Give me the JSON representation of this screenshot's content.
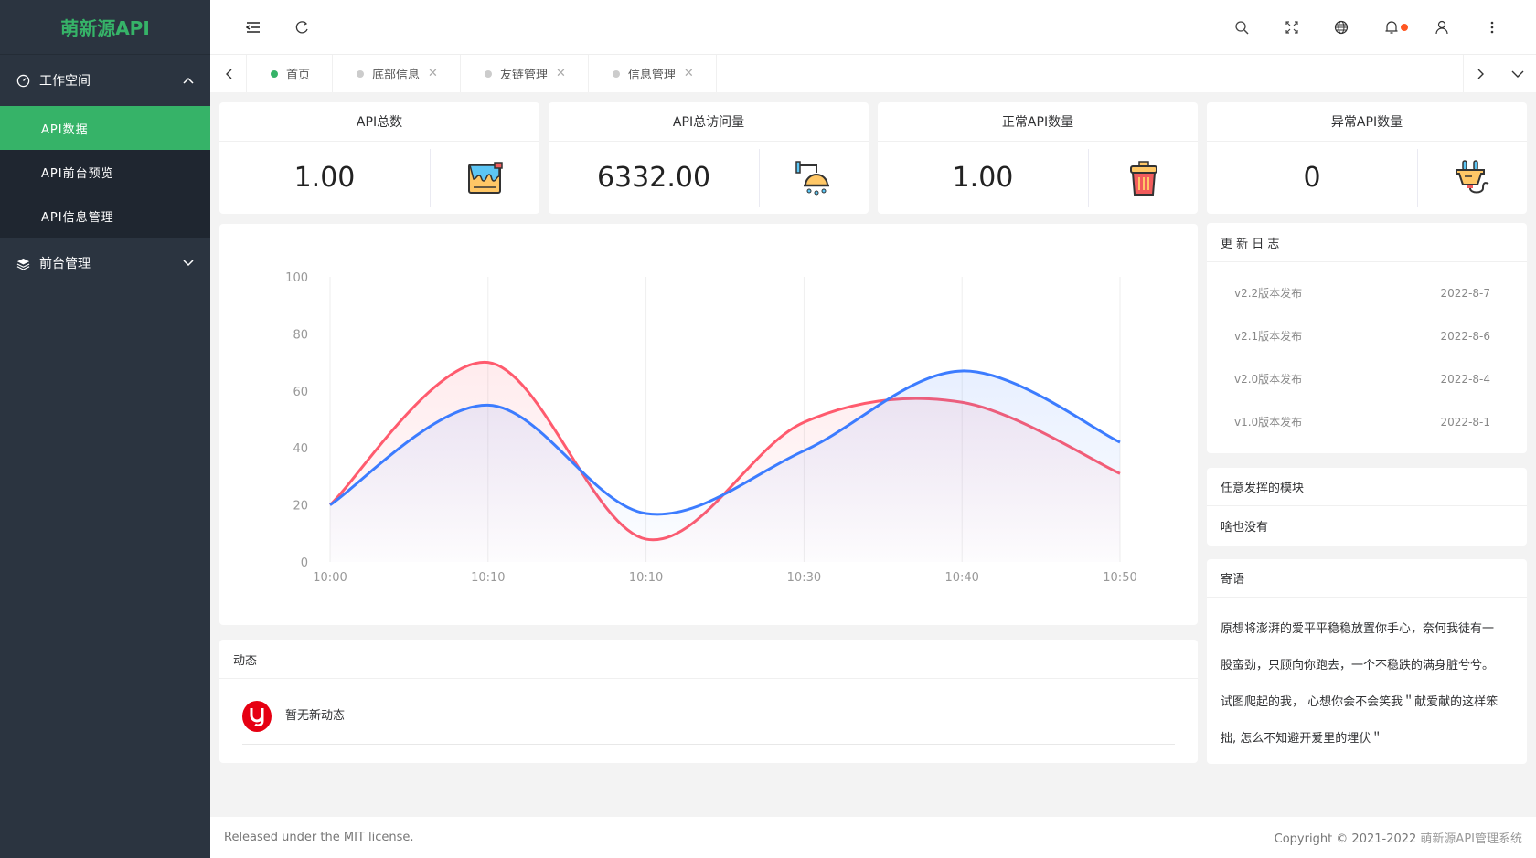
{
  "app": {
    "logo": "萌新源API"
  },
  "sidebar": {
    "groups": [
      {
        "label": "工作空间",
        "icon": "dashboard-icon",
        "expanded": true,
        "items": [
          {
            "label": "API数据",
            "active": true
          },
          {
            "label": "API前台预览"
          },
          {
            "label": "API信息管理"
          }
        ]
      },
      {
        "label": "前台管理",
        "icon": "layers-icon",
        "expanded": false
      }
    ],
    "accent": "#36b368"
  },
  "header": {
    "icons": [
      "menu-fold-icon",
      "refresh-icon",
      "search-icon",
      "fullscreen-icon",
      "globe-icon",
      "bell-icon",
      "user-icon",
      "more-icon"
    ]
  },
  "tabs": [
    {
      "label": "首页",
      "active": true,
      "closable": false
    },
    {
      "label": "底部信息",
      "closable": true
    },
    {
      "label": "友链管理",
      "closable": true
    },
    {
      "label": "信息管理",
      "closable": true
    }
  ],
  "tab_close": "✕",
  "stats": [
    {
      "title": "API总数",
      "value": "1.00",
      "icon": "paint-bucket-icon"
    },
    {
      "title": "API总访问量",
      "value": "6332.00",
      "icon": "shower-icon"
    },
    {
      "title": "正常API数量",
      "value": "1.00",
      "icon": "trash-bin-icon"
    },
    {
      "title": "异常API数量",
      "value": "0",
      "icon": "plug-icon"
    }
  ],
  "chart_data": {
    "type": "area",
    "categories": [
      "10:00",
      "10:10",
      "10:10",
      "10:30",
      "10:40",
      "10:50"
    ],
    "ylim": [
      0,
      100
    ],
    "yticks": [
      "0",
      "20",
      "40",
      "60",
      "80",
      "100"
    ],
    "grid": "vertical",
    "series": [
      {
        "values": [
          20,
          70,
          8,
          49,
          56,
          31
        ],
        "color": "#ff5b6e"
      },
      {
        "values": [
          20,
          55,
          17,
          39,
          67,
          42
        ],
        "color": "#3c7cff"
      }
    ]
  },
  "activity": {
    "title": "动态",
    "empty": "暂无新动态"
  },
  "changelog": {
    "title": "更 新 日 志",
    "items": [
      {
        "label": "v2.2版本发布",
        "date": "2022-8-7"
      },
      {
        "label": "v2.1版本发布",
        "date": "2022-8-6"
      },
      {
        "label": "v2.0版本发布",
        "date": "2022-8-4"
      },
      {
        "label": "v1.0版本发布",
        "date": "2022-8-1"
      }
    ]
  },
  "module": {
    "title": "任意发挥的模块",
    "body": "啥也没有"
  },
  "message": {
    "title": "寄语",
    "body": "原想将澎湃的爱平平稳稳放置你手心，奈何我徒有一股蛮劲，只顾向你跑去，一个不稳跌的满身脏兮兮。试图爬起的我， 心想你会不会笑我＂献爱献的这样笨拙, 怎么不知避开爱里的埋伏＂"
  },
  "footer": {
    "left": "Released under the MIT license.",
    "right_prefix": "Copyright © 2021-2022 ",
    "right_link": "萌新源API管理系统"
  }
}
